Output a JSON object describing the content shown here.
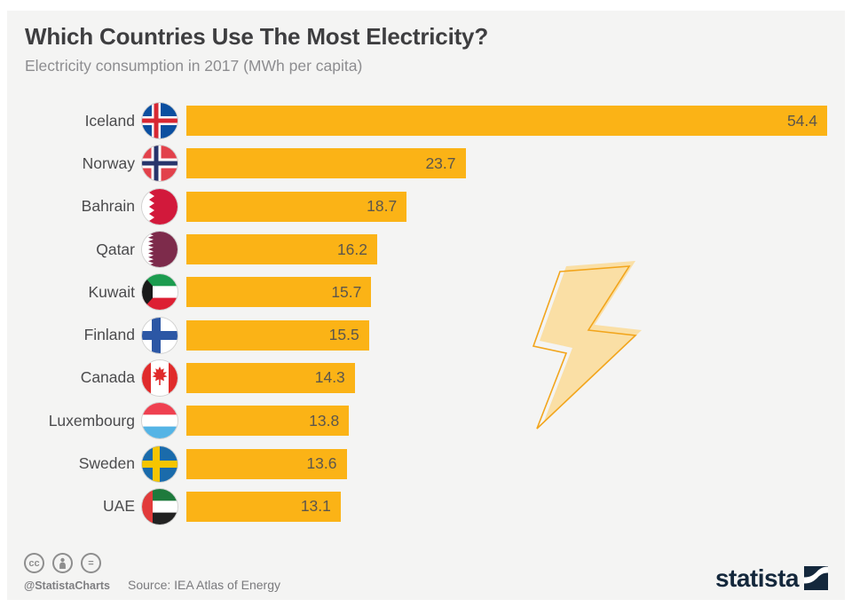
{
  "header": {
    "title": "Which Countries Use The Most Electricity?",
    "subtitle": "Electricity consumption in 2017 (MWh per capita)"
  },
  "chart_data": {
    "type": "bar",
    "orientation": "horizontal",
    "title": "Which Countries Use The Most Electricity?",
    "subtitle": "Electricity consumption in 2017 (MWh per capita)",
    "unit": "MWh per capita",
    "year": "2017",
    "xlim": [
      0,
      54.4
    ],
    "grid": false,
    "legend": false,
    "bar_color": "#fbb316",
    "value_label_color": "#5c564c",
    "categories": [
      "Iceland",
      "Norway",
      "Bahrain",
      "Qatar",
      "Kuwait",
      "Finland",
      "Canada",
      "Luxembourg",
      "Sweden",
      "UAE"
    ],
    "values": [
      54.4,
      23.7,
      18.7,
      16.2,
      15.7,
      15.5,
      14.3,
      13.8,
      13.6,
      13.1
    ],
    "rows": [
      {
        "country": "Iceland",
        "value": 54.4,
        "flag": "iceland-flag"
      },
      {
        "country": "Norway",
        "value": 23.7,
        "flag": "norway-flag"
      },
      {
        "country": "Bahrain",
        "value": 18.7,
        "flag": "bahrain-flag"
      },
      {
        "country": "Qatar",
        "value": 16.2,
        "flag": "qatar-flag"
      },
      {
        "country": "Kuwait",
        "value": 15.7,
        "flag": "kuwait-flag"
      },
      {
        "country": "Finland",
        "value": 15.5,
        "flag": "finland-flag"
      },
      {
        "country": "Canada",
        "value": 14.3,
        "flag": "canada-flag"
      },
      {
        "country": "Luxembourg",
        "value": 13.8,
        "flag": "luxembourg-flag"
      },
      {
        "country": "Sweden",
        "value": 13.6,
        "flag": "sweden-flag"
      },
      {
        "country": "UAE",
        "value": 13.1,
        "flag": "uae-flag"
      }
    ]
  },
  "decoration": {
    "name": "lightning-bolt",
    "fill": "#fadc9e",
    "stroke": "#f2a51c"
  },
  "footer": {
    "license_icons": [
      "cc-icon",
      "attribution-person-icon",
      "equals-icon"
    ],
    "cc_label": "cc",
    "equals_label": "=",
    "handle": "@StatistaCharts",
    "source": "Source: IEA Atlas of Energy",
    "brand": "statista",
    "brand_color": "#14283c"
  }
}
